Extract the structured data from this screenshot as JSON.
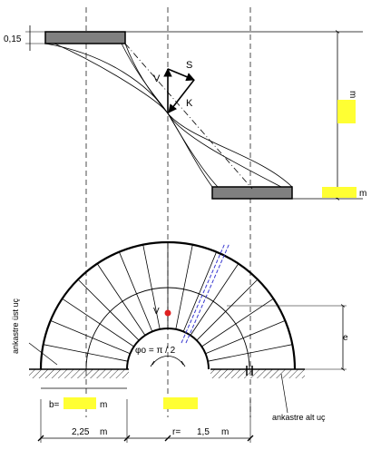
{
  "elevation": {
    "slab_thickness_label": "0,15",
    "force_labels": {
      "vertical": "V",
      "shear": "S",
      "resultant": "K"
    },
    "height_label": "m",
    "height_unit": "m"
  },
  "plan": {
    "fixed_top_label": "ankastre üst uç",
    "fixed_bottom_label": "ankastre alt uç",
    "load_label": "V",
    "angle_label": "φo = π / 2",
    "rise_label": "e",
    "width_prefix": "b=",
    "width_unit": "m",
    "radius_outer_value": "2,25",
    "radius_outer_unit": "m",
    "radius_inner_prefix": "r=",
    "radius_inner_value": "1,5",
    "radius_inner_unit": "m"
  },
  "colors": {
    "highlight": "#ffff33",
    "load_point": "#e02020",
    "rebar_lines": "#3a3ad0",
    "line": "#000000",
    "slab_fill": "#808080"
  }
}
